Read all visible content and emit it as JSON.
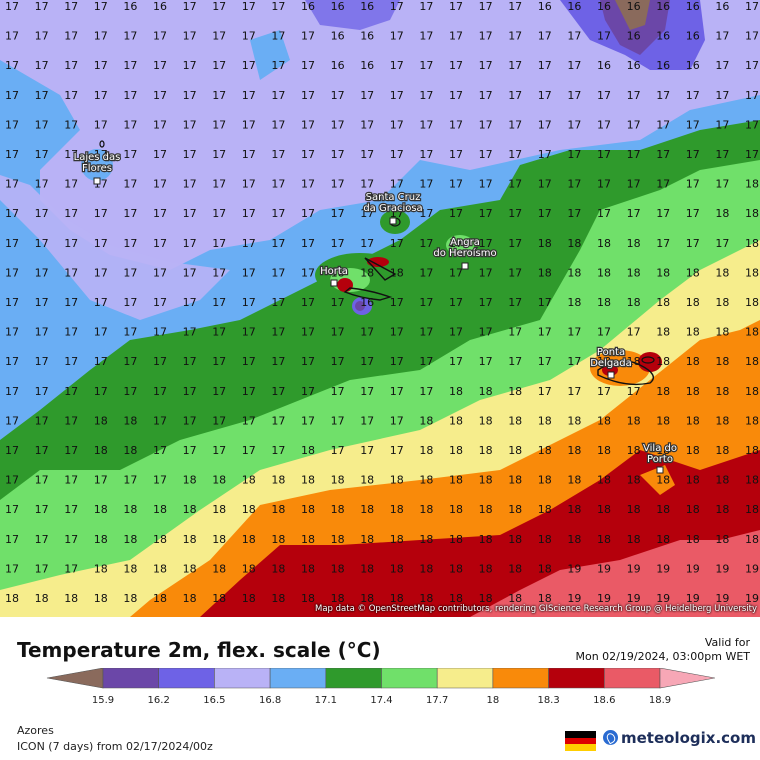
{
  "map": {
    "attribution": "Map data © OpenStreetMap contributors, rendering GIScience Research Group @ Heidelberg University",
    "grid_values": [
      "17 17 17 17 16 16 17 17 17 17 16 16 16 17 17 17 17 17 16 16 16 16 16 16 16 17",
      "17 17 17 17 17 17 17 17 17 17 17 16 16 17 17 17 17 17 17 17 17 16 16 16 17 17",
      "17 17 17 17 17 17 17 17 17 17 17 16 16 17 17 17 17 17 17 17 16 16 16 16 17 17",
      "17 17 17 17 17 17 17 17 17 17 17 17 17 17 17 17 17 17 17 17 17 17 17 17 17 17",
      "17 17 17 17 17 17 17 17 17 17 17 17 17 17 17 17 17 17 17 17 17 17 17 17 17 17",
      "17 17 17 17 17 17 17 17 17 17 17 17 17 17 17 17 17 17 17 17 17 17 17 17 17 17",
      "17 17 17 17 17 17 17 17 17 17 17 17 17 17 17 17 17 17 17 17 17 17 17 17 17 18",
      "17 17 17 17 17 17 17 17 17 17 17 17 17 17 17 17 17 17 17 17 17 17 17 17 18 18",
      "17 17 17 17 17 17 17 17 17 17 17 17 17 17 17 17 17 17 18 18 18 18 17 17 17 18",
      "17 17 17 17 17 17 17 17 17 17 17 18 18 18 17 17 17 17 18 18 18 18 18 18 18 18",
      "17 17 17 17 17 17 17 17 17 17 17 17 16 17 17 17 17 17 17 18 18 18 18 18 18 18",
      "17 17 17 17 17 17 17 17 17 17 17 17 17 17 17 17 17 17 17 17 17 17 18 18 18 18",
      "17 17 17 17 17 17 17 17 17 17 17 17 17 17 17 17 17 17 17 17 18 18 18 18 18 18",
      "17 17 17 17 17 17 17 17 17 17 17 17 17 17 17 18 18 18 17 17 17 17 18 18 18 18",
      "17 17 17 18 18 17 17 17 17 17 17 17 17 17 18 18 18 18 18 18 18 18 18 18 18 18",
      "17 17 17 18 18 17 17 17 17 17 18 17 17 17 18 18 18 18 18 18 18 18 18 18 18 18",
      "17 17 17 17 17 17 18 18 18 18 18 18 18 18 18 18 18 18 18 18 18 18 18 18 18 18",
      "17 17 17 18 18 18 18 18 18 18 18 18 18 18 18 18 18 18 18 18 18 18 18 18 18 18",
      "17 17 17 18 18 18 18 18 18 18 18 18 18 18 18 18 18 18 18 18 18 18 18 18 18 18",
      "17 17 17 18 18 18 18 18 18 18 18 18 18 18 18 18 18 18 18 19 19 19 19 19 19 19",
      "18 18 18 18 18 18 18 18 18 18 18 18 18 18 18 18 18 18 18 19 19 19 19 19 19 19"
    ],
    "towns": [
      {
        "name": "Lajes das Flores",
        "lines": [
          "Lajes das",
          "Flores"
        ]
      },
      {
        "name": "Santa Cruz da Graciosa",
        "lines": [
          "Santa Cruz",
          "da Graciosa"
        ]
      },
      {
        "name": "Angra do Heroísmo",
        "lines": [
          "Angra",
          "do Heroísmo"
        ]
      },
      {
        "name": "Horta",
        "lines": [
          "Horta"
        ]
      },
      {
        "name": "Ponta Delgada",
        "lines": [
          "Ponta",
          "Delgada"
        ]
      },
      {
        "name": "Vila do Porto",
        "lines": [
          "Vila do",
          "Porto"
        ]
      }
    ]
  },
  "title": "Temperature 2m, flex. scale (°C)",
  "valid_label": "Valid for",
  "valid_value": "Mon 02/19/2024, 03:00pm WET",
  "legend": {
    "colors": [
      "#8a6a5c",
      "#6b47a8",
      "#6e62e6",
      "#b9b2f6",
      "#6aaef4",
      "#2f9a2c",
      "#70e06a",
      "#f6ed8c",
      "#f98a0a",
      "#b5000c",
      "#ea5a66",
      "#f7a7b6"
    ],
    "ticks": [
      "15.9",
      "16.2",
      "16.5",
      "16.8",
      "17.1",
      "17.4",
      "17.7",
      "18",
      "18.3",
      "18.6",
      "18.9"
    ]
  },
  "region": "Azores",
  "model": "ICON (7 days)  from  02/17/2024/00z",
  "brand": "meteologix.com"
}
